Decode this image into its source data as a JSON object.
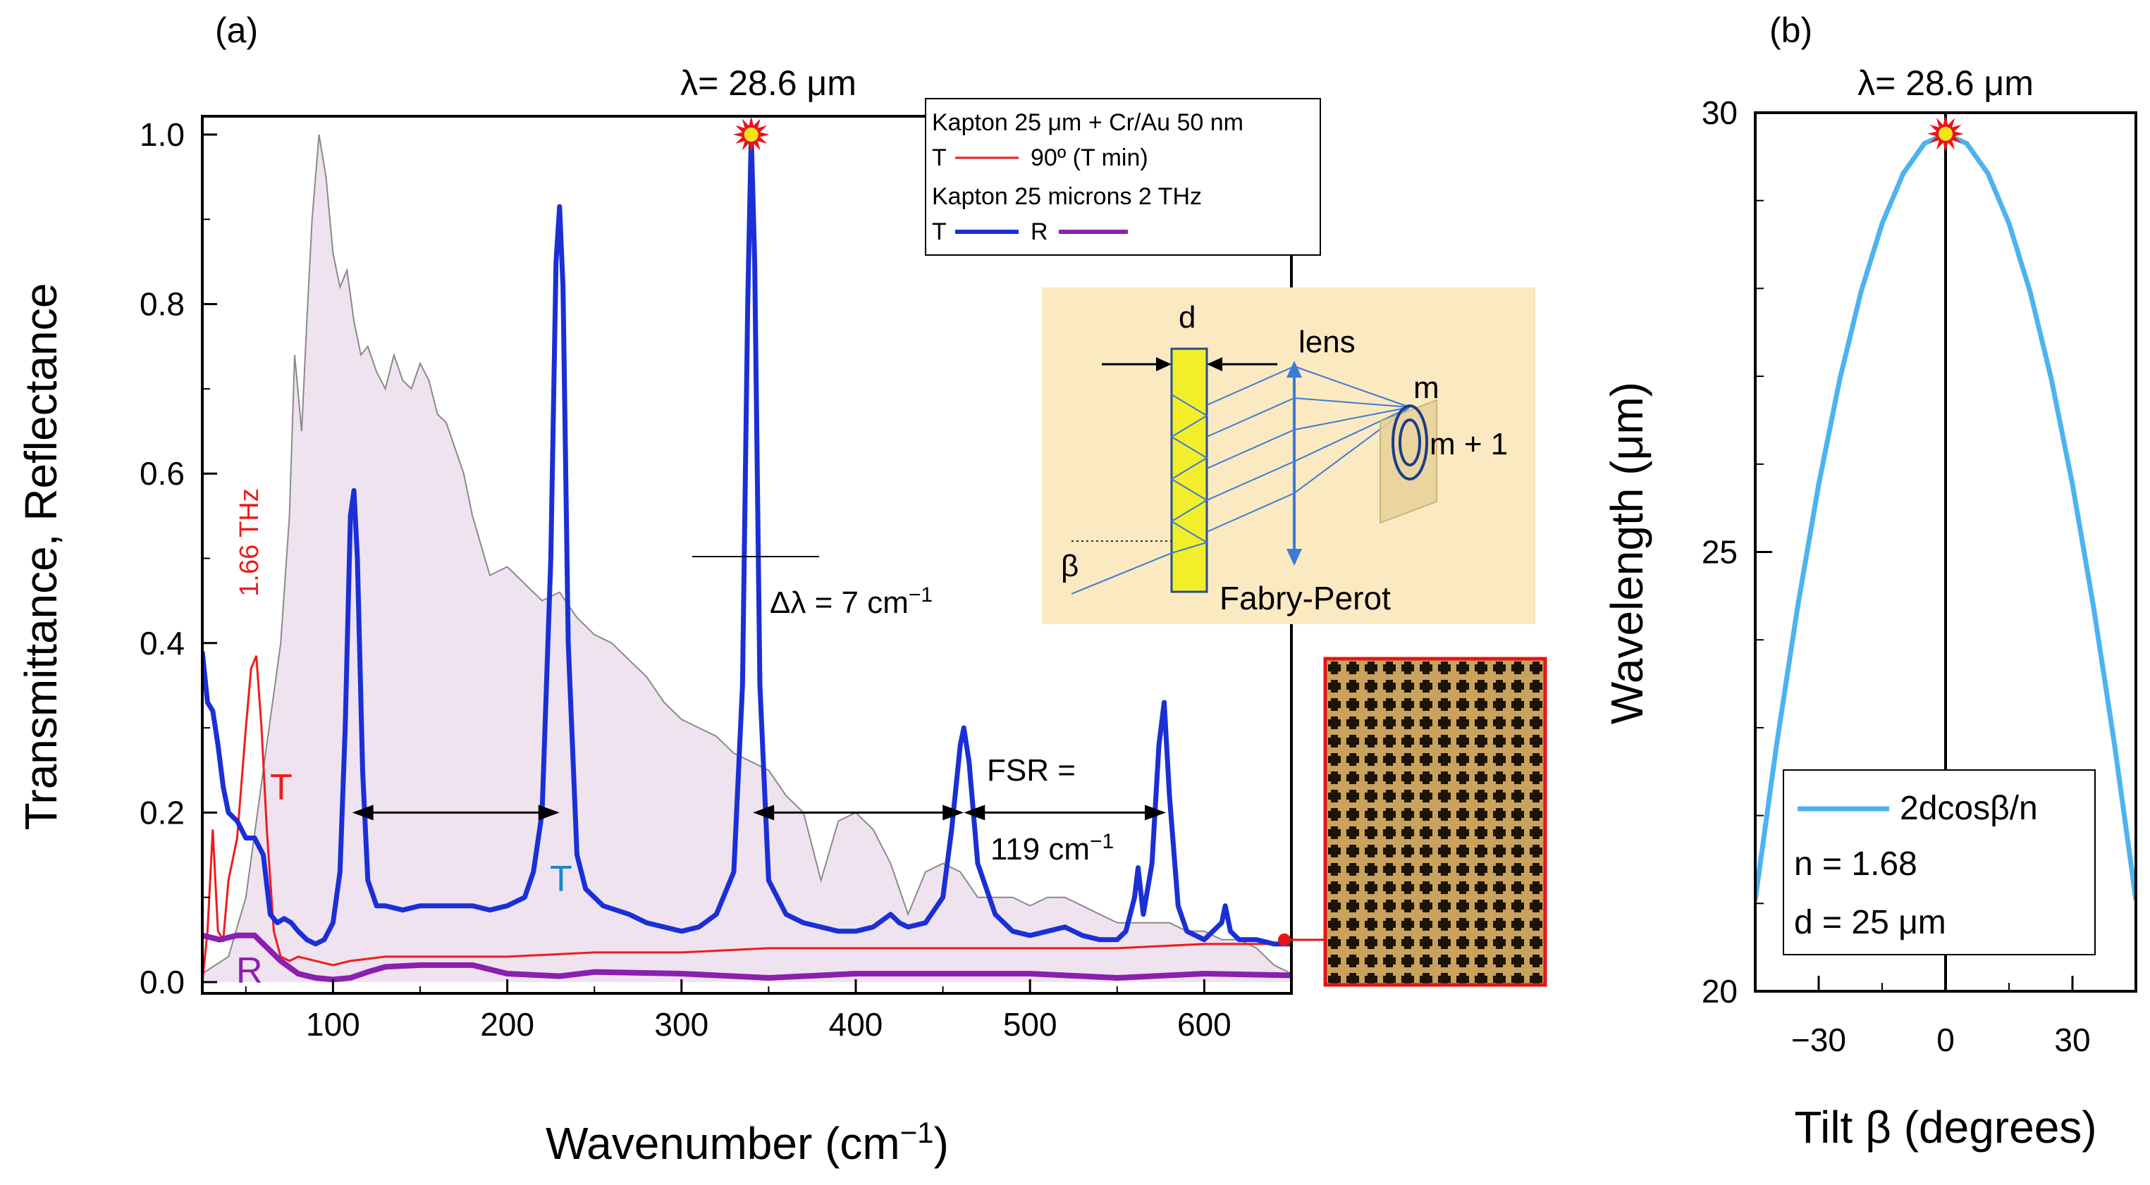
{
  "panel_a": {
    "label": "(a)",
    "peak_label": "λ= 28.6 μm",
    "legend": {
      "line1": "Kapton 25 μm + Cr/Au 50 nm",
      "line2_T": "T",
      "line2_desc": "90º (T min)",
      "line3": "Kapton 25 microns 2 THz",
      "line4_T": "T",
      "line4_R": "R"
    },
    "inset": {
      "d_label": "d",
      "lens_label": "lens",
      "m_label": "m",
      "m1_label": "m + 1",
      "beta_label": "β",
      "title": "Fabry-Perot"
    },
    "annotations": {
      "thz_label": "1.66 THz",
      "T_red": "T",
      "T_teal": "T",
      "R_purple": "R",
      "dlambda": "Δλ = 7 cm",
      "dlambda_sup": "−1",
      "fsr1": "FSR =",
      "fsr2": "119 cm",
      "fsr2_sup": "−1"
    }
  },
  "panel_b": {
    "label": "(b)",
    "peak_label": "λ= 28.6 μm",
    "legend": {
      "formula": "2dcosβ/n",
      "n": "n = 1.68",
      "d": "d = 25 μm"
    }
  },
  "colors": {
    "blue": "#1a2fd6",
    "red": "#ee1c1c",
    "purple": "#8a1fb0",
    "teal": "#1f86c8",
    "fill": "#efe3ef",
    "gray": "#8a8a8a",
    "lightblue": "#4db3ee",
    "inset_bg": "#fbe9c2"
  },
  "chart_data": [
    {
      "type": "line",
      "title": "",
      "xlabel": "Wavenumber (cm−1)",
      "ylabel": "Transmittance, Reflectance",
      "xlim": [
        25,
        650
      ],
      "ylim": [
        -0.02,
        1.05
      ],
      "xticks": [
        "100",
        "200",
        "300",
        "400",
        "500",
        "600"
      ],
      "yticks": [
        "0.0",
        "0.2",
        "0.4",
        "0.6",
        "0.8",
        "1.0"
      ],
      "series": [
        {
          "name": "Kapton 25 microns 2 THz (shaded)",
          "x": [
            25,
            40,
            50,
            60,
            70,
            75,
            78,
            82,
            85,
            88,
            92,
            96,
            100,
            104,
            108,
            112,
            116,
            120,
            125,
            130,
            135,
            140,
            145,
            150,
            155,
            160,
            165,
            170,
            175,
            180,
            190,
            200,
            210,
            220,
            230,
            240,
            250,
            260,
            270,
            280,
            290,
            300,
            310,
            320,
            330,
            340,
            350,
            360,
            370,
            380,
            390,
            400,
            410,
            420,
            430,
            440,
            450,
            460,
            470,
            480,
            490,
            500,
            510,
            520,
            530,
            540,
            550,
            560,
            570,
            580,
            590,
            600,
            610,
            620,
            630,
            640,
            650
          ],
          "values": [
            0.01,
            0.03,
            0.1,
            0.25,
            0.4,
            0.55,
            0.74,
            0.65,
            0.78,
            0.9,
            1.0,
            0.95,
            0.86,
            0.82,
            0.84,
            0.78,
            0.74,
            0.75,
            0.72,
            0.7,
            0.74,
            0.71,
            0.7,
            0.73,
            0.71,
            0.67,
            0.66,
            0.63,
            0.6,
            0.55,
            0.48,
            0.49,
            0.47,
            0.45,
            0.46,
            0.43,
            0.41,
            0.4,
            0.38,
            0.36,
            0.33,
            0.31,
            0.3,
            0.29,
            0.27,
            0.26,
            0.25,
            0.22,
            0.2,
            0.12,
            0.19,
            0.2,
            0.18,
            0.14,
            0.08,
            0.13,
            0.14,
            0.13,
            0.1,
            0.1,
            0.1,
            0.09,
            0.1,
            0.1,
            0.09,
            0.08,
            0.07,
            0.07,
            0.07,
            0.07,
            0.06,
            0.06,
            0.05,
            0.05,
            0.04,
            0.02,
            0.01
          ]
        },
        {
          "name": "T (Kapton 25 μm + Cr/Au 50 nm, 90º T min)",
          "x": [
            25,
            28,
            31,
            34,
            37,
            40,
            45,
            50,
            53,
            56,
            59,
            62,
            66,
            70,
            75,
            80,
            90,
            100,
            110,
            130,
            150,
            200,
            250,
            300,
            350,
            400,
            450,
            500,
            550,
            600,
            650
          ],
          "values": [
            0.0,
            0.06,
            0.18,
            0.06,
            0.05,
            0.12,
            0.17,
            0.3,
            0.37,
            0.385,
            0.3,
            0.18,
            0.06,
            0.03,
            0.025,
            0.03,
            0.025,
            0.02,
            0.025,
            0.03,
            0.03,
            0.03,
            0.035,
            0.035,
            0.04,
            0.04,
            0.04,
            0.04,
            0.04,
            0.045,
            0.045
          ]
        },
        {
          "name": "T (Kapton 25 microns 2 THz)",
          "x": [
            25,
            28,
            31,
            34,
            37,
            40,
            45,
            50,
            55,
            60,
            64,
            68,
            72,
            76,
            80,
            85,
            90,
            95,
            100,
            104,
            107,
            110,
            112,
            114,
            117,
            120,
            125,
            130,
            140,
            150,
            160,
            170,
            180,
            190,
            200,
            210,
            215,
            220,
            225,
            228,
            230,
            232,
            235,
            240,
            245,
            255,
            270,
            280,
            290,
            300,
            310,
            320,
            330,
            335,
            338,
            340,
            342,
            345,
            350,
            360,
            370,
            380,
            390,
            400,
            410,
            420,
            425,
            430,
            440,
            450,
            455,
            460,
            462,
            465,
            470,
            480,
            490,
            500,
            510,
            520,
            530,
            540,
            550,
            555,
            560,
            562,
            565,
            570,
            574,
            577,
            580,
            585,
            590,
            600,
            610,
            612,
            615,
            620,
            630,
            640,
            650
          ],
          "values": [
            0.39,
            0.33,
            0.32,
            0.28,
            0.23,
            0.2,
            0.19,
            0.17,
            0.17,
            0.15,
            0.08,
            0.07,
            0.075,
            0.07,
            0.06,
            0.05,
            0.045,
            0.05,
            0.07,
            0.13,
            0.3,
            0.55,
            0.58,
            0.5,
            0.25,
            0.12,
            0.09,
            0.09,
            0.085,
            0.09,
            0.09,
            0.09,
            0.09,
            0.085,
            0.09,
            0.1,
            0.13,
            0.2,
            0.5,
            0.85,
            0.915,
            0.82,
            0.4,
            0.15,
            0.11,
            0.09,
            0.08,
            0.07,
            0.065,
            0.06,
            0.065,
            0.08,
            0.13,
            0.35,
            0.8,
            1.0,
            0.85,
            0.35,
            0.12,
            0.08,
            0.07,
            0.065,
            0.06,
            0.06,
            0.065,
            0.08,
            0.07,
            0.065,
            0.07,
            0.1,
            0.18,
            0.28,
            0.3,
            0.26,
            0.14,
            0.08,
            0.06,
            0.055,
            0.06,
            0.065,
            0.055,
            0.05,
            0.05,
            0.06,
            0.1,
            0.135,
            0.08,
            0.14,
            0.28,
            0.33,
            0.22,
            0.09,
            0.06,
            0.05,
            0.07,
            0.09,
            0.06,
            0.05,
            0.05,
            0.045,
            0.045
          ]
        },
        {
          "name": "R (Kapton 25 microns 2 THz)",
          "x": [
            25,
            35,
            45,
            55,
            60,
            70,
            80,
            90,
            100,
            110,
            120,
            130,
            150,
            180,
            200,
            230,
            250,
            300,
            350,
            400,
            450,
            500,
            550,
            600,
            650
          ],
          "values": [
            0.055,
            0.05,
            0.055,
            0.055,
            0.045,
            0.025,
            0.01,
            0.005,
            0.003,
            0.005,
            0.012,
            0.018,
            0.02,
            0.02,
            0.01,
            0.007,
            0.012,
            0.01,
            0.005,
            0.01,
            0.01,
            0.01,
            0.005,
            0.01,
            0.008
          ]
        }
      ],
      "annotations": [
        "λ= 28.6 μm",
        "1.66 THz",
        "Δλ = 7 cm−1",
        "FSR = 119 cm−1"
      ]
    },
    {
      "type": "line",
      "title": "",
      "xlabel": "Tilt β (degrees)",
      "ylabel": "Wavelength (μm)",
      "xlim": [
        -45,
        45
      ],
      "ylim": [
        20,
        30
      ],
      "xticks": [
        "−30",
        "0",
        "30"
      ],
      "yticks": [
        "20",
        "25",
        "30"
      ],
      "series": [
        {
          "name": "2dcosβ/n",
          "x": [
            -45,
            -40,
            -35,
            -30,
            -25,
            -20,
            -15,
            -10,
            -5,
            0,
            5,
            10,
            15,
            20,
            25,
            30,
            35,
            40,
            45
          ],
          "values": [
            21.04,
            22.79,
            24.37,
            25.77,
            26.97,
            27.96,
            28.74,
            29.31,
            29.65,
            29.76,
            29.65,
            29.31,
            28.74,
            27.96,
            26.97,
            25.77,
            24.37,
            22.79,
            21.04
          ]
        }
      ]
    }
  ]
}
